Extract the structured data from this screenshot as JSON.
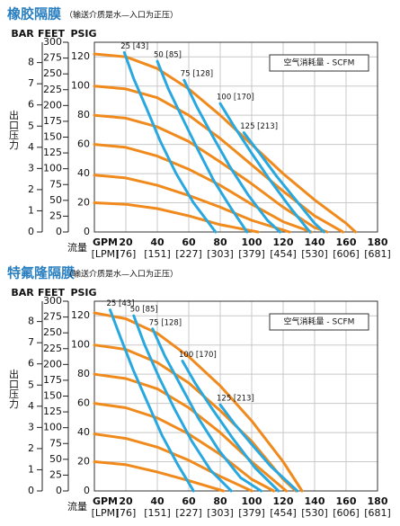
{
  "chart_data": [
    {
      "type": "line",
      "title": "橡胶隔膜",
      "subtitle": "（输送介质是水—入口为正压）",
      "axis_headers": [
        "BAR",
        "FEET",
        "PSIG"
      ],
      "y_label": "出口压力",
      "x_label": "流量",
      "x_unit": "GPM",
      "x_unit2": "[LPM]",
      "legend_box": "空气消耗量 - SCFM",
      "xlim": [
        0,
        180
      ],
      "xticks": [
        20,
        40,
        60,
        80,
        100,
        120,
        140,
        160,
        180
      ],
      "xticks_lpm": [
        "[76]",
        "[151]",
        "[227]",
        "[303]",
        "[379]",
        "[454]",
        "[530]",
        "[606]",
        "[681]"
      ],
      "ylim": [
        0,
        130
      ],
      "yticks": [
        0,
        20,
        40,
        60,
        80,
        100,
        120
      ],
      "feet_lim": [
        0,
        300
      ],
      "feet_ticks": [
        0,
        25,
        50,
        75,
        100,
        125,
        150,
        175,
        200,
        225,
        250,
        275,
        300
      ],
      "bar_lim": [
        0,
        8.96
      ],
      "bar_ticks": [
        0,
        1,
        2,
        3,
        4,
        5,
        6,
        7,
        8
      ],
      "grid": true,
      "series": [
        {
          "color": "#f08a1c",
          "x": [
            0,
            20,
            40,
            60,
            80,
            100,
            120,
            140,
            160,
            166
          ],
          "values": [
            122,
            120,
            112,
            98,
            80,
            60,
            40,
            22,
            6,
            0
          ]
        },
        {
          "color": "#f08a1c",
          "x": [
            0,
            20,
            40,
            60,
            80,
            100,
            120,
            140,
            158
          ],
          "values": [
            100,
            98,
            92,
            80,
            64,
            46,
            28,
            11,
            0
          ]
        },
        {
          "color": "#f08a1c",
          "x": [
            0,
            20,
            40,
            60,
            80,
            100,
            120,
            140,
            148
          ],
          "values": [
            80,
            78,
            72,
            62,
            48,
            33,
            17,
            3,
            0
          ]
        },
        {
          "color": "#f08a1c",
          "x": [
            0,
            20,
            40,
            60,
            80,
            100,
            120,
            138
          ],
          "values": [
            60,
            58,
            52,
            43,
            32,
            19,
            7,
            0
          ]
        },
        {
          "color": "#f08a1c",
          "x": [
            0,
            20,
            40,
            60,
            80,
            100,
            124
          ],
          "values": [
            39,
            37,
            32,
            25,
            17,
            8,
            0
          ]
        },
        {
          "color": "#f08a1c",
          "x": [
            0,
            20,
            40,
            60,
            80,
            104
          ],
          "values": [
            20,
            19,
            16,
            11,
            5,
            0
          ]
        },
        {
          "name": "25 [43]",
          "color": "#29a8e0",
          "x": [
            19,
            25,
            33,
            42,
            52,
            63,
            77
          ],
          "values": [
            123,
            105,
            85,
            62,
            40,
            20,
            0
          ]
        },
        {
          "name": "50 [85]",
          "color": "#29a8e0",
          "x": [
            40,
            47,
            56,
            66,
            76,
            87,
            97
          ],
          "values": [
            117,
            98,
            78,
            56,
            35,
            16,
            0
          ]
        },
        {
          "name": "75 [128]",
          "color": "#29a8e0",
          "x": [
            57,
            65,
            75,
            86,
            98,
            110,
            118
          ],
          "values": [
            104,
            86,
            66,
            45,
            25,
            8,
            0
          ]
        },
        {
          "name": "100 [170]",
          "color": "#29a8e0",
          "x": [
            80,
            89,
            100,
            112,
            125,
            137
          ],
          "values": [
            88,
            72,
            54,
            35,
            16,
            0
          ]
        },
        {
          "name": "125 [213]",
          "color": "#29a8e0",
          "x": [
            95,
            105,
            116,
            128,
            140,
            146
          ],
          "values": [
            68,
            54,
            38,
            22,
            6,
            0
          ]
        }
      ]
    },
    {
      "type": "line",
      "title": "特氟隆隔膜",
      "subtitle": "（输送介质是水—入口为正压）",
      "axis_headers": [
        "BAR",
        "FEET",
        "PSIG"
      ],
      "y_label": "出口压力",
      "x_label": "流量",
      "x_unit": "GPM",
      "x_unit2": "[LPM]",
      "legend_box": "空气消耗量 - SCFM",
      "xlim": [
        0,
        180
      ],
      "xticks": [
        20,
        40,
        60,
        80,
        100,
        120,
        140,
        160,
        180
      ],
      "xticks_lpm": [
        "[76]",
        "[151]",
        "[227]",
        "[303]",
        "[379]",
        "[454]",
        "[530]",
        "[606]",
        "[681]"
      ],
      "ylim": [
        0,
        130
      ],
      "yticks": [
        0,
        20,
        40,
        60,
        80,
        100,
        120
      ],
      "feet_lim": [
        0,
        300
      ],
      "feet_ticks": [
        0,
        25,
        50,
        75,
        100,
        125,
        150,
        175,
        200,
        225,
        250,
        275,
        300
      ],
      "bar_lim": [
        0,
        8.96
      ],
      "bar_ticks": [
        0,
        1,
        2,
        3,
        4,
        5,
        6,
        7,
        8
      ],
      "grid": true,
      "series": [
        {
          "color": "#f08a1c",
          "x": [
            0,
            20,
            40,
            60,
            80,
            100,
            120,
            132
          ],
          "values": [
            122,
            118,
            108,
            92,
            72,
            48,
            20,
            0
          ]
        },
        {
          "color": "#f08a1c",
          "x": [
            0,
            20,
            40,
            60,
            80,
            100,
            120,
            128
          ],
          "values": [
            100,
            97,
            88,
            74,
            55,
            34,
            8,
            0
          ]
        },
        {
          "color": "#f08a1c",
          "x": [
            0,
            20,
            40,
            60,
            80,
            100,
            122
          ],
          "values": [
            80,
            77,
            70,
            57,
            40,
            20,
            0
          ]
        },
        {
          "color": "#f08a1c",
          "x": [
            0,
            20,
            40,
            60,
            80,
            100,
            114
          ],
          "values": [
            60,
            57,
            50,
            39,
            25,
            8,
            0
          ]
        },
        {
          "color": "#f08a1c",
          "x": [
            0,
            20,
            40,
            60,
            80,
            100
          ],
          "values": [
            39,
            36,
            30,
            21,
            10,
            0
          ]
        },
        {
          "color": "#f08a1c",
          "x": [
            0,
            20,
            40,
            60,
            82
          ],
          "values": [
            20,
            18,
            13,
            7,
            0
          ]
        },
        {
          "name": "25 [43]",
          "color": "#29a8e0",
          "x": [
            10,
            17,
            25,
            34,
            43,
            53,
            63
          ],
          "values": [
            124,
            104,
            82,
            60,
            38,
            18,
            0
          ]
        },
        {
          "name": "50 [85]",
          "color": "#29a8e0",
          "x": [
            25,
            32,
            41,
            51,
            62,
            74,
            87
          ],
          "values": [
            120,
            100,
            78,
            56,
            34,
            14,
            0
          ]
        },
        {
          "name": "75 [128]",
          "color": "#29a8e0",
          "x": [
            37,
            45,
            55,
            66,
            79,
            93,
            106
          ],
          "values": [
            111,
            92,
            72,
            50,
            28,
            9,
            0
          ]
        },
        {
          "name": "100 [170]",
          "color": "#29a8e0",
          "x": [
            56,
            64,
            75,
            88,
            102,
            117
          ],
          "values": [
            89,
            74,
            56,
            36,
            16,
            0
          ]
        },
        {
          "name": "125 [213]",
          "color": "#29a8e0",
          "x": [
            80,
            89,
            100,
            112,
            129
          ],
          "values": [
            59,
            46,
            32,
            17,
            0
          ]
        }
      ]
    }
  ]
}
